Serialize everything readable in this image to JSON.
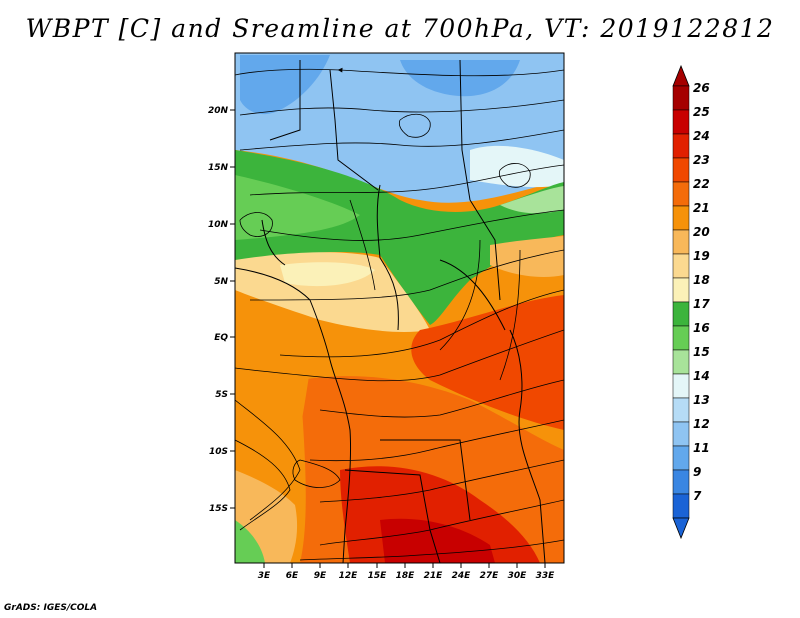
{
  "title": "WBPT [C] and Sreamline at 700hPa, VT: 2019122812",
  "credit": "GrADS: IGES/COLA",
  "map": {
    "lat_labels": [
      "20N",
      "15N",
      "10N",
      "5N",
      "EQ",
      "5S",
      "10S",
      "15S"
    ],
    "lon_labels": [
      "3E",
      "6E",
      "9E",
      "12E",
      "15E",
      "18E",
      "21E",
      "24E",
      "27E",
      "30E",
      "33E"
    ],
    "lat_range": [
      -19.5,
      24.5
    ],
    "lon_range": [
      0,
      35
    ]
  },
  "colorbar": {
    "labels": [
      "26",
      "25",
      "24",
      "23",
      "22",
      "21",
      "20",
      "19",
      "18",
      "17",
      "16",
      "15",
      "14",
      "13",
      "12",
      "11",
      "9",
      "7"
    ],
    "colors": [
      "#a50000",
      "#c80000",
      "#e12000",
      "#f04800",
      "#f46c0a",
      "#f6920a",
      "#f8b85a",
      "#fbd990",
      "#fbf1b8",
      "#3cb43c",
      "#66cd55",
      "#a8e39a",
      "#e4f6f8",
      "#b6dcf6",
      "#8fc4f2",
      "#62a8ec",
      "#3a86e2",
      "#1a63d6"
    ]
  }
}
